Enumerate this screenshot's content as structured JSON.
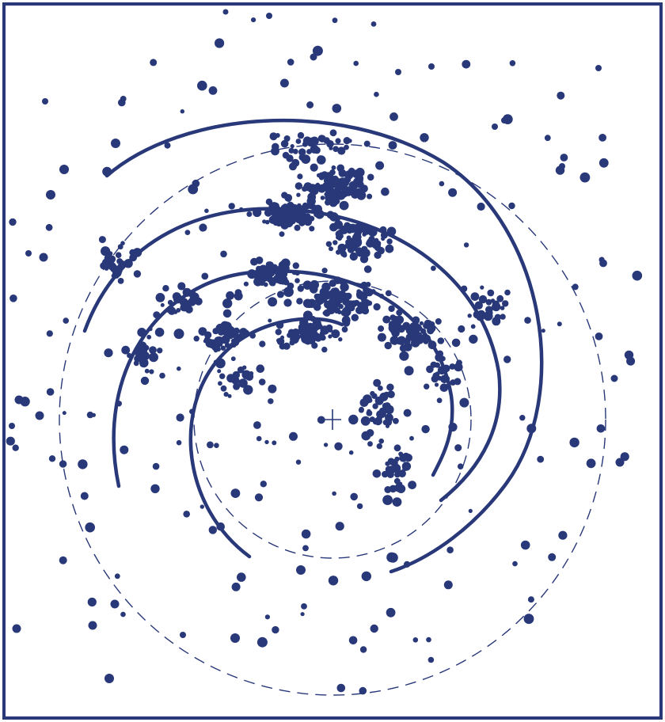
{
  "colors": {
    "ink": "#283878",
    "background": "#ffffff",
    "frame": "#283878"
  },
  "diagram": {
    "type": "star-distribution-map",
    "center_marker": "plus-cross",
    "spiral_arms_drawn": 4,
    "reference_circles": 2,
    "reference_circle_style": "dashed",
    "arm_style": "solid",
    "points_style": "filled-dots-varied-size"
  }
}
